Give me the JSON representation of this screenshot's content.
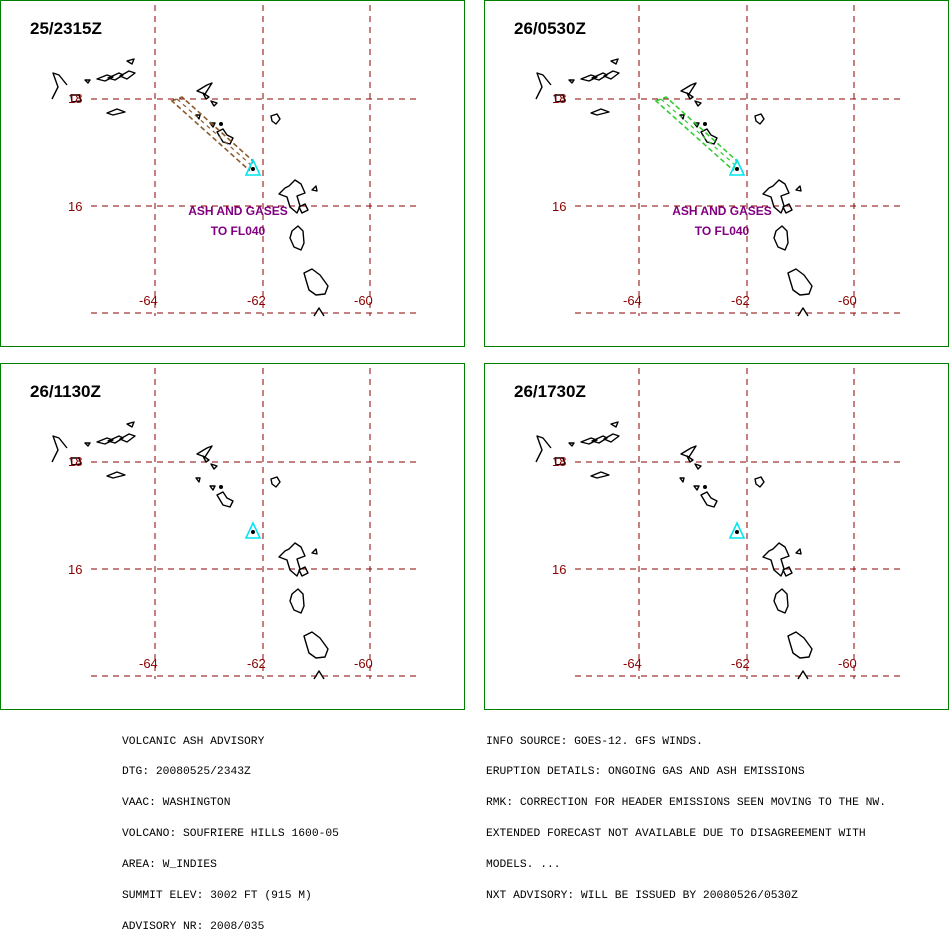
{
  "panels": [
    {
      "time": "25/2315Z",
      "cloud": {
        "color": "#8b5a2b"
      },
      "note": [
        "ASH AND GASES",
        "TO FL040"
      ]
    },
    {
      "time": "26/0530Z",
      "cloud": {
        "color": "#33cc33"
      },
      "note": [
        "ASH AND GASES",
        "TO FL040"
      ]
    },
    {
      "time": "26/1130Z",
      "cloud": null,
      "note": null
    },
    {
      "time": "26/1730Z",
      "cloud": null,
      "note": null
    }
  ],
  "grid": {
    "lat_labels": [
      "18",
      "16"
    ],
    "lon_labels": [
      "-64",
      "-62",
      "-60"
    ],
    "line_color": "#8b0000",
    "label_color": "#8b0000"
  },
  "volcano_marker": {
    "icon": "triangle-icon",
    "color": "#00e5ee"
  },
  "note_color": "#800080",
  "advisory": {
    "left": [
      "VOLCANIC ASH ADVISORY",
      "DTG: 20080525/2343Z",
      "VAAC: WASHINGTON",
      "VOLCANO: SOUFRIERE HILLS 1600-05",
      "AREA: W_INDIES",
      "SUMMIT ELEV: 3002 FT (915 M)",
      "ADVISORY NR: 2008/035"
    ],
    "right": [
      "INFO SOURCE: GOES-12. GFS WINDS.",
      "ERUPTION DETAILS: ONGOING GAS AND ASH EMISSIONS",
      "RMK: CORRECTION FOR HEADER EMISSIONS SEEN MOVING TO THE NW.",
      "EXTENDED FORECAST NOT AVAILABLE DUE TO DISAGREEMENT WITH",
      "MODELS. ...",
      "NXT ADVISORY: WILL BE ISSUED BY 20080526/0530Z"
    ]
  }
}
